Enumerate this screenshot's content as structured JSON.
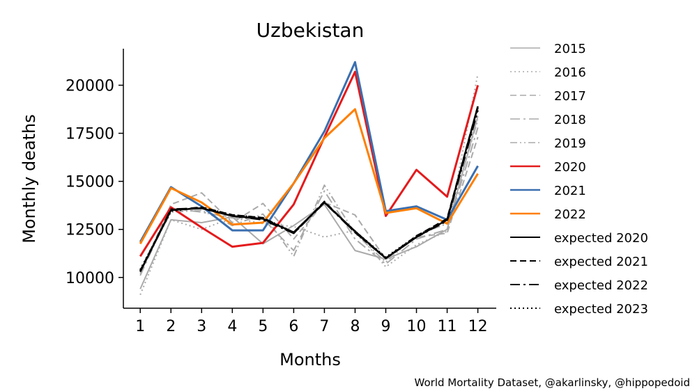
{
  "chart_data": {
    "type": "line",
    "title": "Uzbekistan",
    "xlabel": "Months",
    "ylabel": "Monthly deaths",
    "x": [
      1,
      2,
      3,
      4,
      5,
      6,
      7,
      8,
      9,
      10,
      11,
      12
    ],
    "xlim": [
      0.45,
      12.6
    ],
    "ylim": [
      8400,
      21900
    ],
    "yticks": [
      10000,
      12500,
      15000,
      17500,
      20000
    ],
    "grid": false,
    "legend_position": "outside-right",
    "credit": "World Mortality Dataset, @akarlinsky, @hippopedoid",
    "series": [
      {
        "name": "2015",
        "color": "#aaaaaa",
        "dash": "solid",
        "width": 2,
        "values": [
          9400,
          13000,
          12850,
          13150,
          11750,
          12700,
          13800,
          11400,
          10950,
          11600,
          12500,
          18400
        ]
      },
      {
        "name": "2016",
        "color": "#aaaaaa",
        "dash": "dotted",
        "width": 2,
        "values": [
          9100,
          13000,
          12500,
          13100,
          12800,
          12650,
          12100,
          12450,
          10550,
          11700,
          12400,
          20600
        ]
      },
      {
        "name": "2017",
        "color": "#aaaaaa",
        "dash": "dashed",
        "width": 2,
        "values": [
          10200,
          13800,
          14400,
          12850,
          13850,
          12000,
          13900,
          13250,
          10950,
          12100,
          12300,
          17300
        ]
      },
      {
        "name": "2018",
        "color": "#aaaaaa",
        "dash": "dashdot",
        "width": 2,
        "values": [
          10100,
          13600,
          13400,
          13100,
          13050,
          11400,
          14500,
          12000,
          10700,
          12000,
          12500,
          17800
        ]
      },
      {
        "name": "2019",
        "color": "#aaaaaa",
        "dash": "dashdotdot",
        "width": 2,
        "values": [
          10300,
          13400,
          13500,
          12700,
          13300,
          11100,
          14800,
          12300,
          10800,
          12200,
          12800,
          18200
        ]
      },
      {
        "name": "2020",
        "color": "#e41a1c",
        "dash": "solid",
        "width": 3,
        "values": [
          11100,
          13650,
          12600,
          11600,
          11800,
          13800,
          17300,
          20700,
          13200,
          15600,
          14200,
          20000
        ]
      },
      {
        "name": "2021",
        "color": "#3a6fb0",
        "dash": "solid",
        "width": 3,
        "values": [
          11850,
          14700,
          13700,
          12450,
          12450,
          14900,
          17600,
          21200,
          13450,
          13700,
          13000,
          15800
        ]
      },
      {
        "name": "2022",
        "color": "#ff7f00",
        "dash": "solid",
        "width": 3,
        "values": [
          11750,
          14650,
          13900,
          12750,
          12850,
          14900,
          17250,
          18750,
          13350,
          13600,
          12800,
          15400
        ]
      },
      {
        "name": "expected 2020",
        "color": "#000000",
        "dash": "solid",
        "width": 2.5,
        "values": [
          10300,
          13500,
          13600,
          13200,
          13050,
          12350,
          13900,
          12400,
          11000,
          12100,
          13000,
          18900
        ]
      },
      {
        "name": "expected 2021",
        "color": "#000000",
        "dash": "dashed",
        "width": 2.5,
        "values": [
          10350,
          13500,
          13650,
          13250,
          13100,
          12300,
          13950,
          12350,
          11000,
          12150,
          13050,
          18900
        ]
      },
      {
        "name": "expected 2022",
        "color": "#000000",
        "dash": "dashdot",
        "width": 2.5,
        "values": [
          10300,
          13550,
          13600,
          13200,
          13000,
          12300,
          13900,
          12350,
          11000,
          12100,
          12950,
          18700
        ]
      },
      {
        "name": "expected 2023",
        "color": "#000000",
        "dash": "dotted",
        "width": 2.5,
        "values": [
          10400,
          13450,
          13650,
          13250,
          13100,
          12350,
          13900,
          12400,
          11050,
          12150,
          13000,
          18800
        ]
      }
    ]
  }
}
